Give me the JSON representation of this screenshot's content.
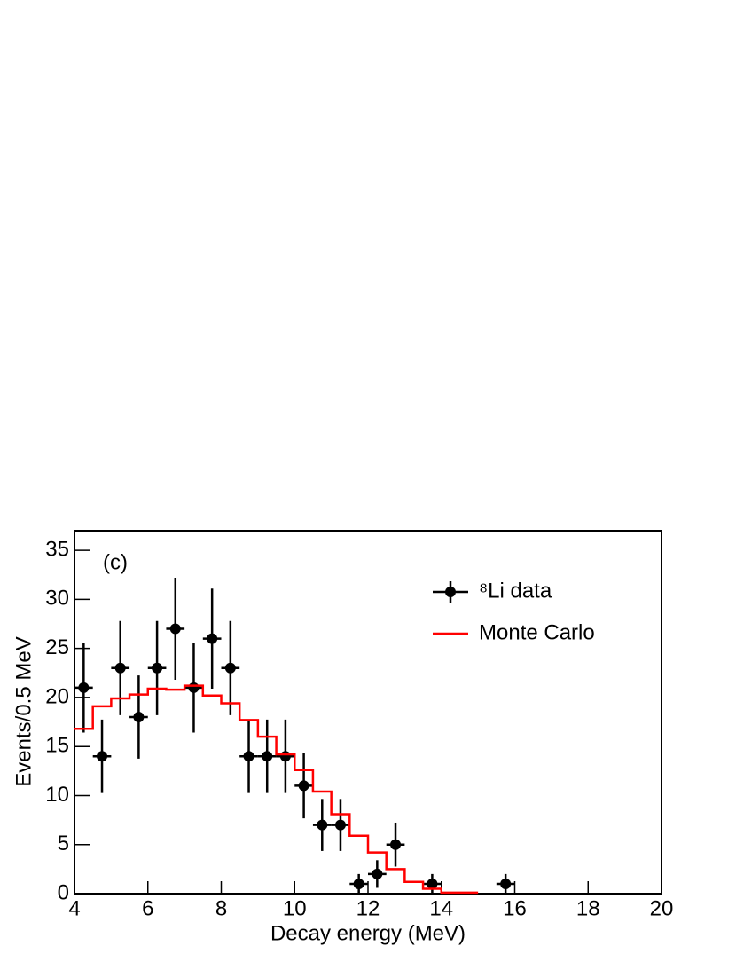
{
  "chart_data": {
    "type": "errorbar",
    "annotation": "(c)",
    "x_label": "Decay energy (MeV)",
    "y_label": "Events/0.5 MeV",
    "xlim": [
      4,
      20
    ],
    "ylim": [
      0,
      37
    ],
    "xticks": [
      4,
      6,
      8,
      10,
      12,
      14,
      16,
      18,
      20
    ],
    "yticks": [
      0,
      5,
      10,
      15,
      20,
      25,
      30,
      35
    ],
    "legend": "upper right",
    "series": [
      {
        "name": "⁸Li data",
        "type": "errorbar",
        "color": "#000000",
        "x": [
          4.25,
          4.75,
          5.25,
          5.75,
          6.25,
          6.75,
          7.25,
          7.75,
          8.25,
          8.75,
          9.25,
          9.75,
          10.25,
          10.75,
          11.25,
          11.75,
          12.25,
          12.75,
          13.75,
          15.75
        ],
        "values": [
          21,
          14,
          23,
          18,
          23,
          27,
          21,
          26,
          23,
          14,
          14,
          14,
          11,
          7,
          7,
          1,
          2,
          5,
          1,
          1
        ],
        "yerr": [
          4.58,
          3.74,
          4.8,
          4.24,
          4.8,
          5.2,
          4.58,
          5.1,
          4.8,
          3.74,
          3.74,
          3.74,
          3.32,
          2.65,
          2.65,
          1,
          1.41,
          2.24,
          1,
          1
        ],
        "xerr": 0.25
      },
      {
        "name": "Monte Carlo",
        "type": "step",
        "color": "#ff0000",
        "bins": [
          4,
          4.5,
          5,
          5.5,
          6,
          6.5,
          7,
          7.5,
          8,
          8.5,
          9,
          9.5,
          10,
          10.5,
          11,
          11.5,
          12,
          12.5,
          13,
          13.5,
          14,
          14.5,
          15
        ],
        "values": [
          16.8,
          19.1,
          19.9,
          20.3,
          20.9,
          20.8,
          21.2,
          20.2,
          19.4,
          17.7,
          16.0,
          14.2,
          12.6,
          10.4,
          8.1,
          5.9,
          4.2,
          2.5,
          1.2,
          0.5,
          0.1,
          0.1
        ]
      }
    ]
  }
}
